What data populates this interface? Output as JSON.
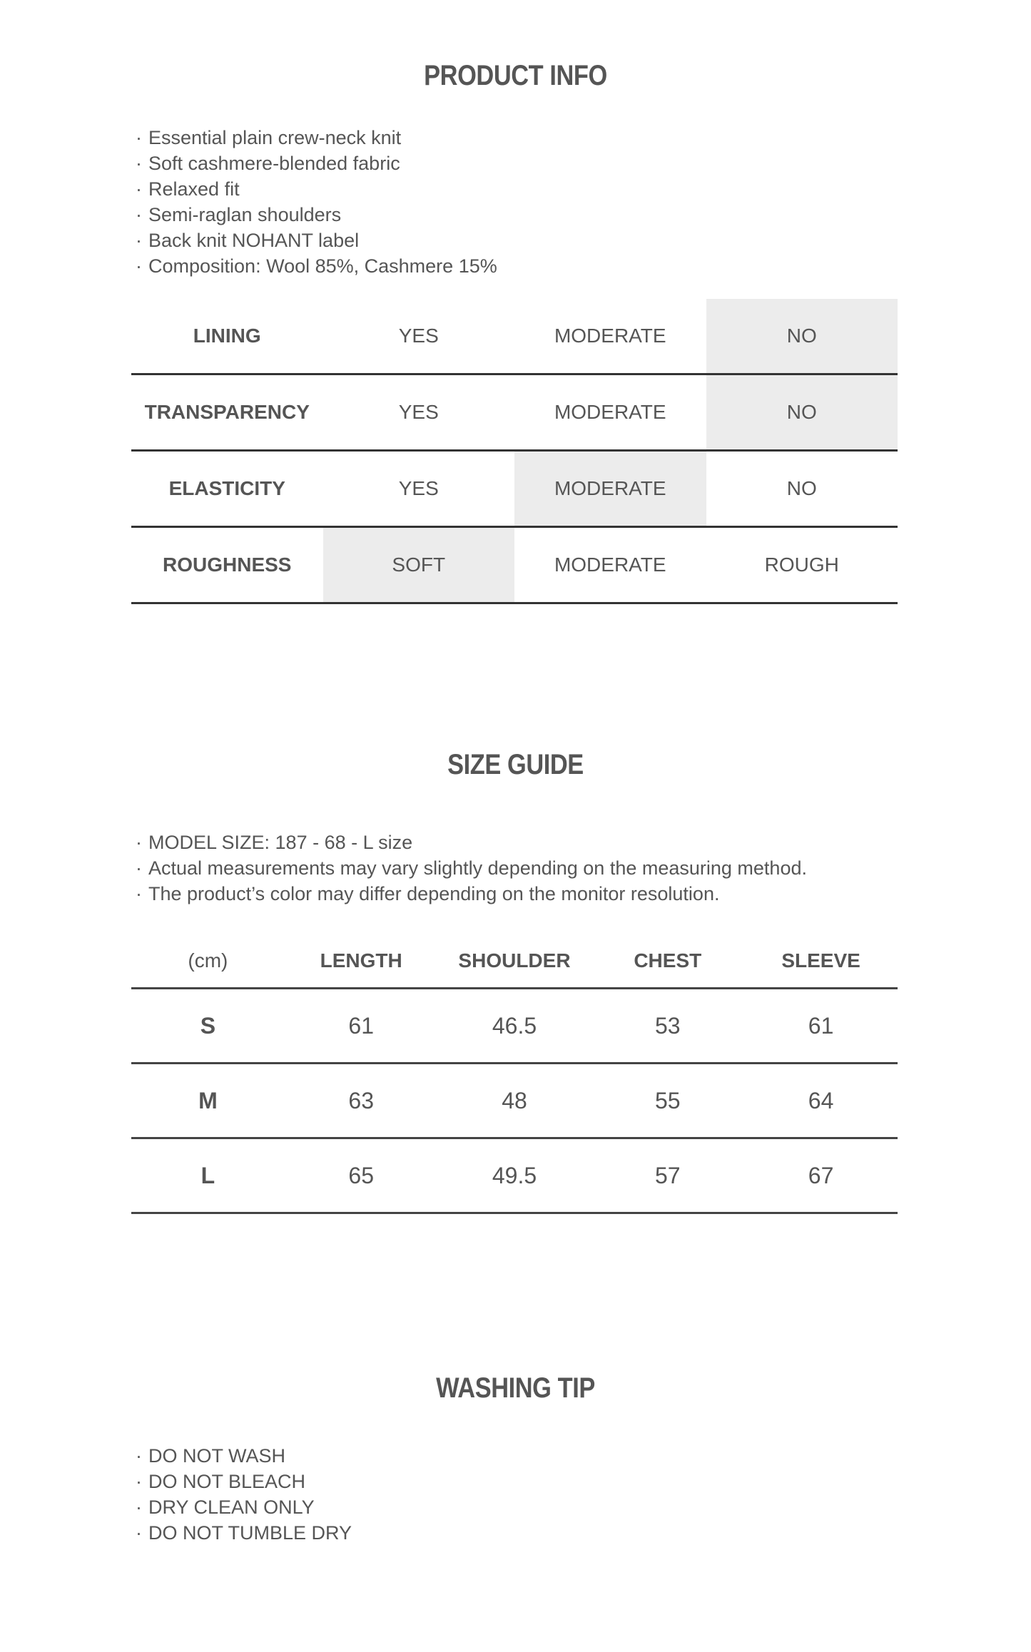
{
  "product_info": {
    "title": "PRODUCT INFO",
    "bullets": [
      "Essential plain crew-neck knit",
      "Soft cashmere-blended fabric",
      "Relaxed fit",
      "Semi-raglan shoulders",
      "Back knit NOHANT label",
      "Composition: Wool 85%, Cashmere 15%"
    ],
    "attributes": [
      {
        "label": "LINING",
        "options": [
          "YES",
          "MODERATE",
          "NO"
        ],
        "selected": 2
      },
      {
        "label": "TRANSPARENCY",
        "options": [
          "YES",
          "MODERATE",
          "NO"
        ],
        "selected": 2
      },
      {
        "label": "ELASTICITY",
        "options": [
          "YES",
          "MODERATE",
          "NO"
        ],
        "selected": 1
      },
      {
        "label": "ROUGHNESS",
        "options": [
          "SOFT",
          "MODERATE",
          "ROUGH"
        ],
        "selected": 0
      }
    ],
    "highlight_color": "#ececec"
  },
  "size_guide": {
    "title": "SIZE GUIDE",
    "bullets": [
      "MODEL SIZE: 187 - 68 - L size",
      "Actual measurements may vary slightly depending on the measuring method.",
      "The product’s color may differ depending on the monitor resolution."
    ],
    "headers": [
      "(cm)",
      "LENGTH",
      "SHOULDER",
      "CHEST",
      "SLEEVE"
    ],
    "rows": [
      [
        "S",
        "61",
        "46.5",
        "53",
        "61"
      ],
      [
        "M",
        "63",
        "48",
        "55",
        "64"
      ],
      [
        "L",
        "65",
        "49.5",
        "57",
        "67"
      ]
    ]
  },
  "washing_tip": {
    "title": "WASHING TIP",
    "bullets": [
      "DO NOT WASH",
      "DO NOT BLEACH",
      "DRY CLEAN ONLY",
      "DO NOT TUMBLE DRY"
    ]
  }
}
